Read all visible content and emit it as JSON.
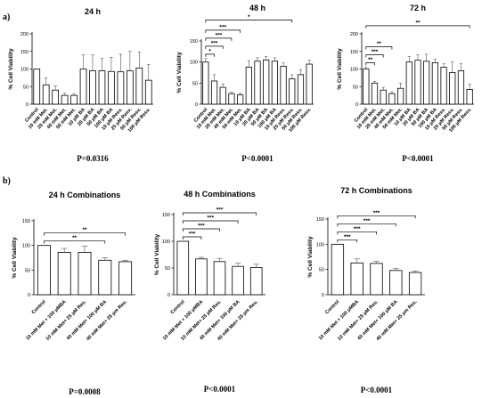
{
  "panel_labels": [
    "a)",
    "b)"
  ],
  "chart_data": [
    {
      "type": "bar",
      "title": "24 h",
      "ylabel": "% Cell Viability",
      "ylim": [
        0,
        200
      ],
      "yticks": [
        0,
        50,
        100,
        150,
        200
      ],
      "categories": [
        "Control",
        "10 mM Met.",
        "20 mM Met.",
        "40 mM Met.",
        "50 mM Met.",
        "10 μM BA",
        "20 μM BA",
        "50 μM BA",
        "100 μM BA",
        "10 μM Resv.",
        "25 μM Resv.",
        "50 μM Resv.",
        "100 μM Resv."
      ],
      "values": [
        100,
        55,
        40,
        25,
        25,
        100,
        95,
        95,
        93,
        92,
        95,
        103,
        68
      ],
      "errors": [
        0,
        20,
        12,
        6,
        5,
        40,
        45,
        35,
        40,
        50,
        55,
        45,
        45
      ],
      "significance": [],
      "pvalue": "P=0.0316"
    },
    {
      "type": "bar",
      "title": "48 h",
      "ylabel": "% Cell Viability",
      "ylim": [
        0,
        150
      ],
      "yticks": [
        0,
        50,
        100,
        150
      ],
      "categories": [
        "Control",
        "10 mM Met.",
        "20 mM Met.",
        "40 mM Met.",
        "50 mM Met.",
        "10 μM BA",
        "20 μM BA",
        "50 μM BA",
        "100 μM BA",
        "10 μM Resv.",
        "25 μM Resv.",
        "50 μM Resv.",
        "100 μM Resv."
      ],
      "values": [
        100,
        55,
        40,
        25,
        22,
        88,
        102,
        105,
        102,
        90,
        60,
        70,
        95
      ],
      "errors": [
        8,
        15,
        8,
        4,
        4,
        15,
        8,
        8,
        8,
        8,
        10,
        12,
        10
      ],
      "significance": [
        {
          "from": 0,
          "to": 1,
          "label": "*"
        },
        {
          "from": 0,
          "to": 2,
          "label": "***"
        },
        {
          "from": 0,
          "to": 3,
          "label": "***"
        },
        {
          "from": 0,
          "to": 4,
          "label": "***"
        },
        {
          "from": 0,
          "to": 10,
          "label": "*"
        }
      ],
      "pvalue": "P<0.0001"
    },
    {
      "type": "bar",
      "title": "72 h",
      "ylabel": "% Cell Viability",
      "ylim": [
        0,
        200
      ],
      "yticks": [
        0,
        50,
        100,
        150,
        200
      ],
      "categories": [
        "Control",
        "10 mM Met.",
        "20 mM Met.",
        "40 mM Met.",
        "50 mM Met.",
        "10 μM BA",
        "20 μM BA",
        "50 μM BA",
        "100 μM BA",
        "10 μM Resv.",
        "25 μM Resv.",
        "50 μM Resv.",
        "100 μM Resv."
      ],
      "values": [
        100,
        60,
        40,
        30,
        45,
        120,
        125,
        122,
        118,
        105,
        90,
        95,
        42
      ],
      "errors": [
        5,
        5,
        8,
        5,
        15,
        15,
        15,
        20,
        10,
        10,
        30,
        20,
        15
      ],
      "significance": [
        {
          "from": 0,
          "to": 1,
          "label": "**"
        },
        {
          "from": 0,
          "to": 2,
          "label": "***"
        },
        {
          "from": 0,
          "to": 3,
          "label": "**"
        },
        {
          "from": 0,
          "to": 12,
          "label": "**"
        }
      ],
      "pvalue": "P<0.0001"
    },
    {
      "type": "bar",
      "title": "24 h Combinations",
      "ylabel": "% Cell Viability",
      "ylim": [
        0,
        150
      ],
      "yticks": [
        0,
        50,
        100,
        150
      ],
      "categories": [
        "Control",
        "10 mM Met + 100 μMBA",
        "10 mM Met+ 25 μM Res.",
        "40 mM Met+ 100 μM BA",
        "40 mM Met+ 25 μm Res."
      ],
      "values": [
        100,
        86,
        86,
        70,
        67
      ],
      "errors": [
        0,
        8,
        13,
        5,
        3
      ],
      "significance": [
        {
          "from": 0,
          "to": 3,
          "label": "**"
        },
        {
          "from": 0,
          "to": 4,
          "label": "**"
        }
      ],
      "pvalue": "P=0.0008"
    },
    {
      "type": "bar",
      "title": "48 h Combinations",
      "ylabel": "% Cell Viability",
      "ylim": [
        0,
        150
      ],
      "yticks": [
        0,
        50,
        100,
        150
      ],
      "categories": [
        "Control",
        "10 mM Met + 100 μMBA",
        "10 mM Met+ 25 μM Res.",
        "40 mM Met+ 100 μM BA",
        "40 mM Met+ 25 μm Res."
      ],
      "values": [
        100,
        67,
        62,
        53,
        51
      ],
      "errors": [
        0,
        3,
        6,
        6,
        6
      ],
      "significance": [
        {
          "from": 0,
          "to": 1,
          "label": "***"
        },
        {
          "from": 0,
          "to": 2,
          "label": "***"
        },
        {
          "from": 0,
          "to": 3,
          "label": "***"
        },
        {
          "from": 0,
          "to": 4,
          "label": "***"
        }
      ],
      "pvalue": "P<0.0001"
    },
    {
      "type": "bar",
      "title": "72 h Combinations",
      "ylabel": "% Cell Viability",
      "ylim": [
        0,
        150
      ],
      "yticks": [
        0,
        50,
        100,
        150
      ],
      "categories": [
        "Control",
        "10 mM Met + 100 μMBA",
        "10 mM Met+ 25 μM Res.",
        "40 mM Met+ 100 μM BA",
        "40 mM Met+ 25 μm Res."
      ],
      "values": [
        100,
        63,
        62,
        48,
        44
      ],
      "errors": [
        0,
        8,
        4,
        4,
        3
      ],
      "significance": [
        {
          "from": 0,
          "to": 1,
          "label": "***"
        },
        {
          "from": 0,
          "to": 2,
          "label": "***"
        },
        {
          "from": 0,
          "to": 3,
          "label": "***"
        },
        {
          "from": 0,
          "to": 4,
          "label": "***"
        }
      ],
      "pvalue": "P<0.0001"
    }
  ]
}
